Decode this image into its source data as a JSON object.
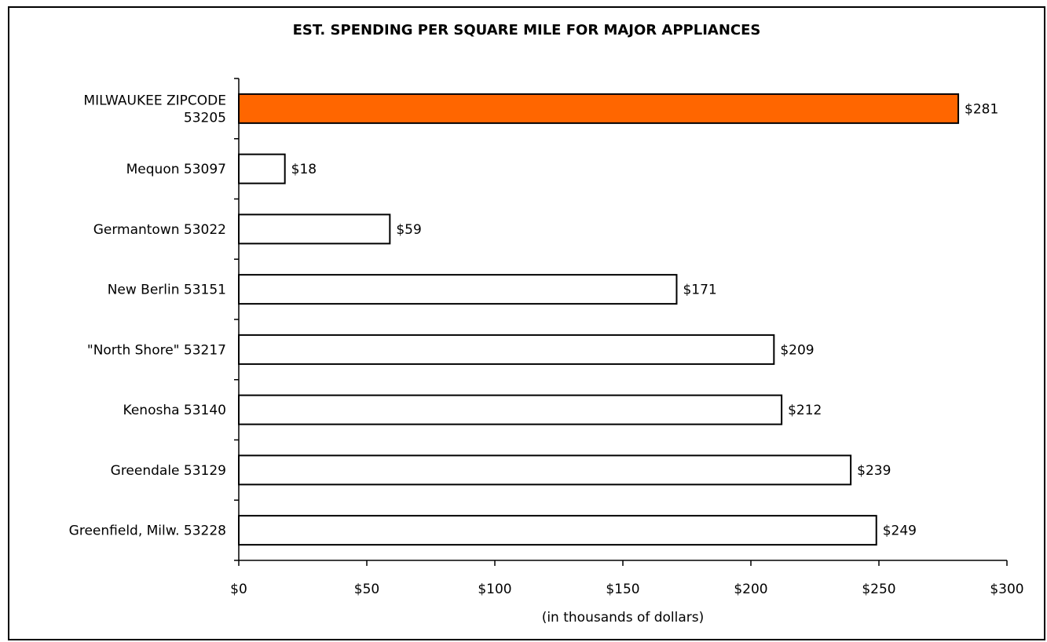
{
  "chart_data": {
    "type": "bar",
    "orientation": "horizontal",
    "title": "EST. SPENDING PER SQUARE MILE FOR MAJOR APPLIANCES",
    "xlabel": "(in thousands of dollars)",
    "categories": [
      [
        "MILWAUKEE ZIPCODE",
        "53205"
      ],
      [
        "Mequon 53097"
      ],
      [
        "Germantown 53022"
      ],
      [
        "New Berlin 53151"
      ],
      [
        "\"North Shore\" 53217"
      ],
      [
        "Kenosha 53140"
      ],
      [
        "Greendale 53129"
      ],
      [
        "Greenfield, Milw. 53228"
      ]
    ],
    "values": [
      281,
      18,
      59,
      171,
      209,
      212,
      239,
      249
    ],
    "data_labels": [
      "$281",
      "$18",
      "$59",
      "$171",
      "$209",
      "$212",
      "$239",
      "$249"
    ],
    "xlim": [
      0,
      300
    ],
    "xticks": [
      0,
      50,
      100,
      150,
      200,
      250,
      300
    ],
    "xtick_labels": [
      "$0",
      "$50",
      "$100",
      "$150",
      "$200",
      "$250",
      "$300"
    ],
    "grid": false,
    "colors": {
      "highlight": "#ff6600",
      "default": "#ffffff",
      "outline": "#000000"
    }
  }
}
